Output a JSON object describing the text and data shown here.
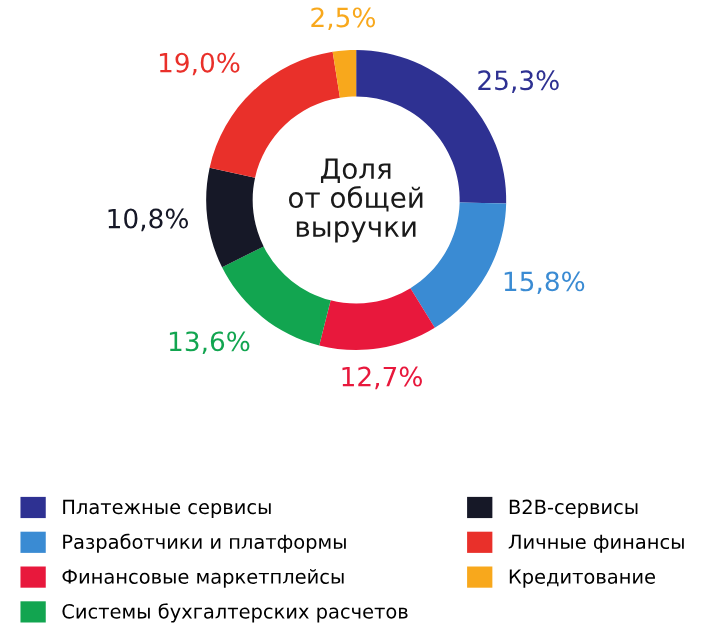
{
  "chart_data": {
    "type": "donut",
    "categories": [
      "Платежные сервисы",
      "Разработчики и платформы",
      "Финансовые маркетплейсы",
      "Системы бухгалтерских расчетов",
      "B2B-сервисы",
      "Личные финансы",
      "Кредитование"
    ],
    "values": [
      25.3,
      15.8,
      12.7,
      13.6,
      10.8,
      19.0,
      2.5
    ],
    "colors": [
      "#2e3192",
      "#3a8bd3",
      "#e8183c",
      "#12a550",
      "#161827",
      "#e9302a",
      "#f8a81c"
    ],
    "value_labels": [
      "25,3%",
      "15,8%",
      "12,7%",
      "13,6%",
      "10,8%",
      "19,0%",
      "2,5%"
    ],
    "annotations": [
      "Доля\nот общей\nвыручки"
    ],
    "legend": "bottom"
  }
}
